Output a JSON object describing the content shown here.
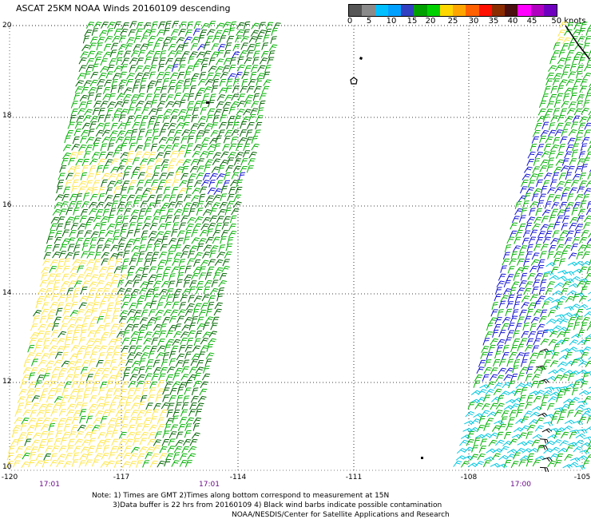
{
  "title": "ASCAT 25KM NOAA Winds 20160109 descending",
  "legend": {
    "unit_label": "50 knots",
    "ticks": [
      "0",
      "5",
      "10",
      "15",
      "20",
      "25",
      "30",
      "35",
      "40",
      "45"
    ],
    "colors": [
      "#555555",
      "#8a8a8a",
      "#00bfff",
      "#00a0ff",
      "#3040c0",
      "#00a000",
      "#00d000",
      "#ffd700",
      "#ffa500",
      "#ff6000",
      "#ff1000",
      "#8b2b00",
      "#4a0f0f",
      "#ff00ff",
      "#b000c0",
      "#7000c0"
    ]
  },
  "map": {
    "lon_range": [
      -120,
      -105
    ],
    "lat_range": [
      10,
      20
    ],
    "grid": true
  },
  "axes": {
    "y_labels": [
      "20",
      "18",
      "16",
      "14",
      "12",
      "10"
    ],
    "x_labels": [
      "-120",
      "-117",
      "-114",
      "-111",
      "-108",
      "-105"
    ]
  },
  "pass_times": [
    "17:01",
    "17:01",
    "17:00"
  ],
  "notes": [
    "Note: 1) Times are GMT 2)Times along bottom correspond to measurement at 15N",
    "3)Data buffer is 22 hrs from 20160109 4) Black wind barbs indicate possible contamination",
    "NOAA/NESDIS/Center for Satellite Applications and Research"
  ],
  "barb_colors": {
    "green": "#00b000",
    "dark_green": "#006400",
    "yellow": "#ffe64a",
    "blue": "#1010d0",
    "cyan": "#00c8e0",
    "black": "#000000"
  }
}
